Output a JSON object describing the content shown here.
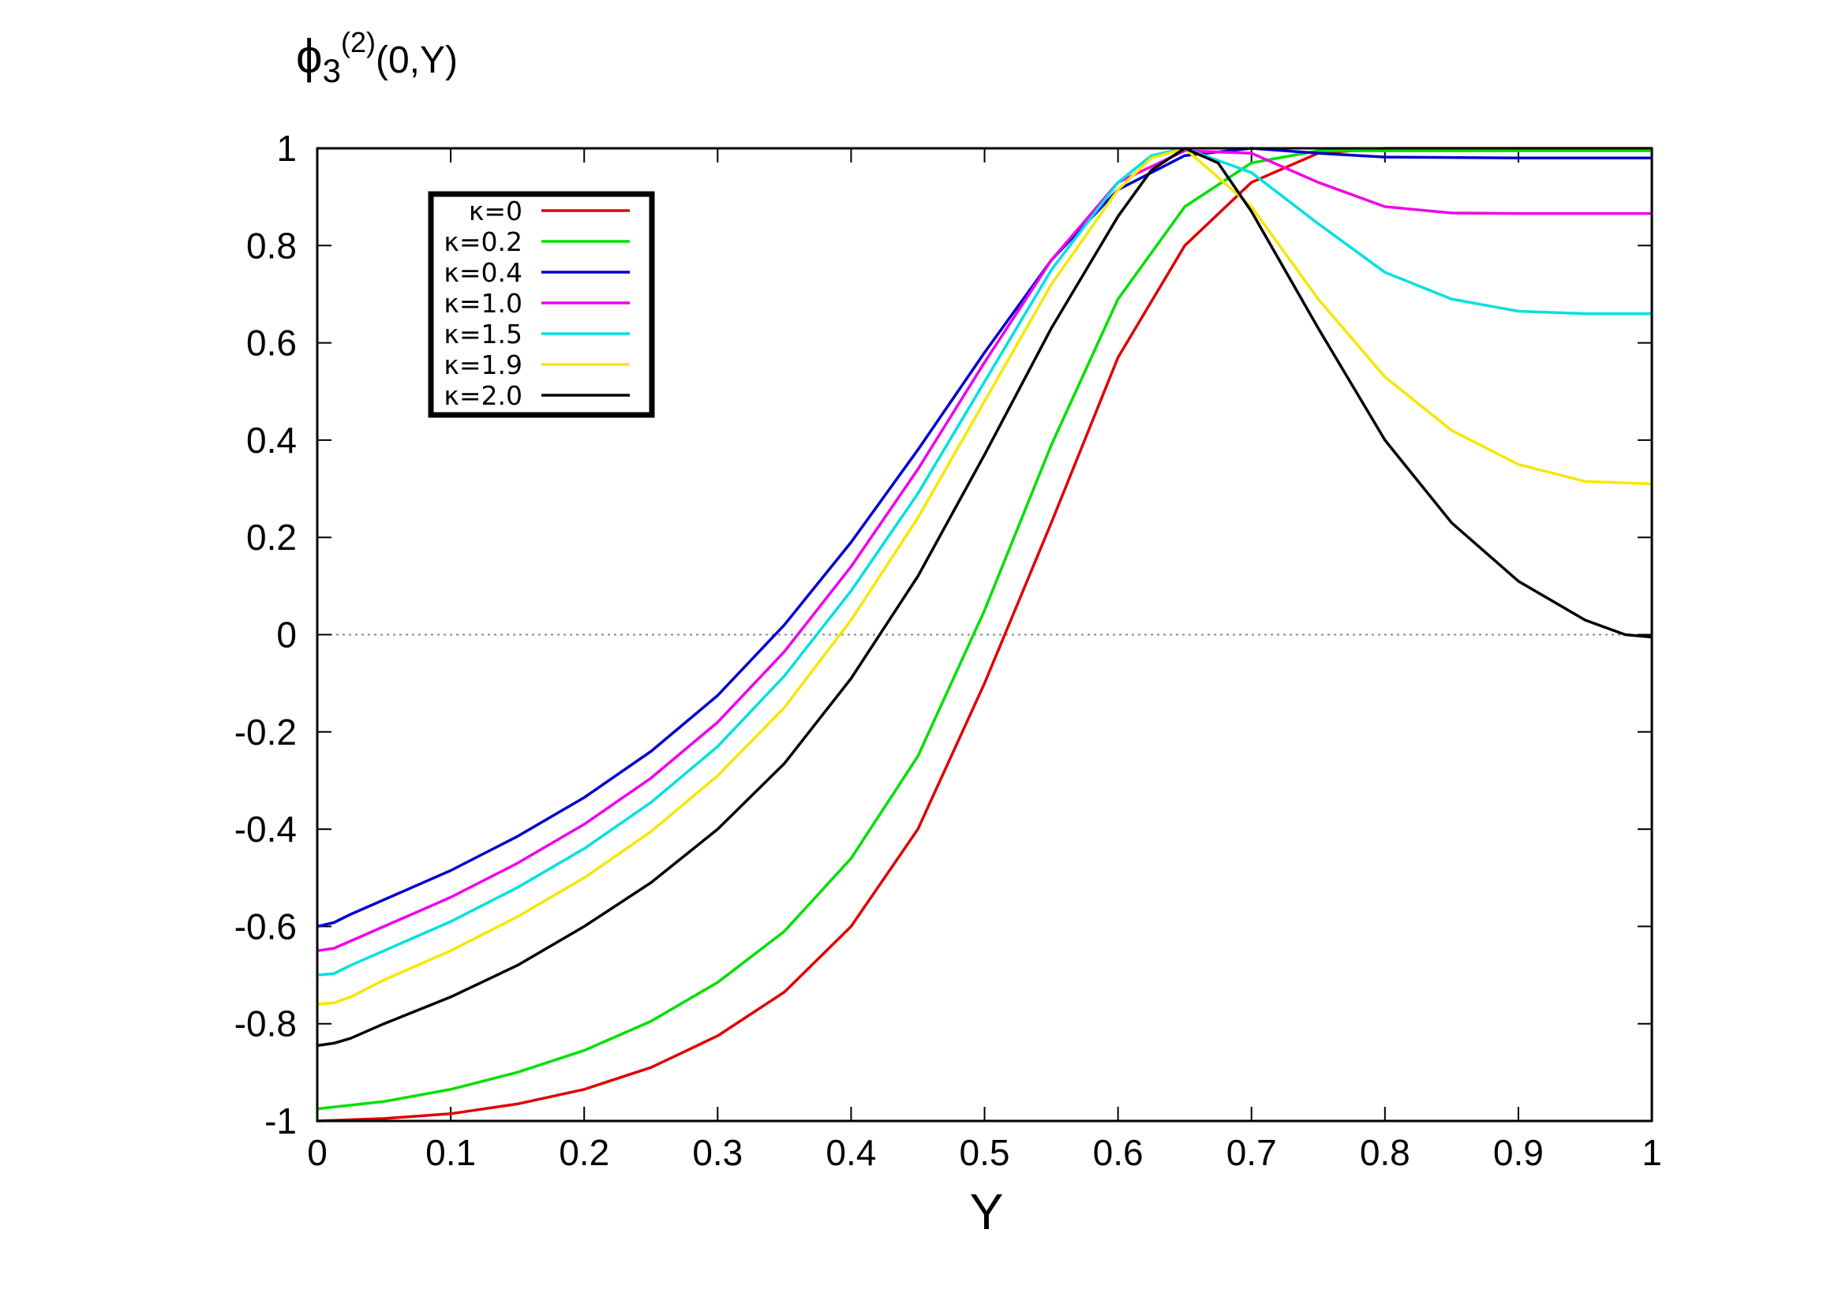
{
  "chart_data": {
    "type": "line",
    "title": "",
    "ylabel": {
      "symbol": "ϕ",
      "subscript": "3",
      "superscript": "(2)",
      "args": "(0,Y)"
    },
    "xlabel": "Y",
    "xlim": [
      0,
      1
    ],
    "ylim": [
      -1,
      1
    ],
    "x_ticks": [
      0,
      0.1,
      0.2,
      0.3,
      0.4,
      0.5,
      0.6,
      0.7,
      0.8,
      0.9,
      1
    ],
    "x_tick_labels": [
      "0",
      "0.1",
      "0.2",
      "0.3",
      "0.4",
      "0.5",
      "0.6",
      "0.7",
      "0.8",
      "0.9",
      "1"
    ],
    "y_ticks": [
      -1,
      -0.8,
      -0.6,
      -0.4,
      -0.2,
      0,
      0.2,
      0.4,
      0.6,
      0.8,
      1
    ],
    "y_tick_labels": [
      "-1",
      "-0.8",
      "-0.6",
      "-0.4",
      "-0.2",
      "0",
      "0.2",
      "0.4",
      "0.6",
      "0.8",
      "1"
    ],
    "zero_line": true,
    "legend_position": "top-left",
    "series": [
      {
        "name": "κ=0",
        "color": "#e00000",
        "points": [
          [
            0,
            -1.0
          ],
          [
            0.05,
            -0.995
          ],
          [
            0.1,
            -0.985
          ],
          [
            0.15,
            -0.965
          ],
          [
            0.2,
            -0.935
          ],
          [
            0.25,
            -0.89
          ],
          [
            0.3,
            -0.825
          ],
          [
            0.35,
            -0.735
          ],
          [
            0.4,
            -0.6
          ],
          [
            0.45,
            -0.4
          ],
          [
            0.5,
            -0.1
          ],
          [
            0.55,
            0.23
          ],
          [
            0.6,
            0.57
          ],
          [
            0.65,
            0.8
          ],
          [
            0.7,
            0.93
          ],
          [
            0.75,
            0.99
          ],
          [
            0.8,
            1.0
          ],
          [
            0.85,
            1.0
          ],
          [
            0.9,
            1.0
          ],
          [
            0.95,
            1.0
          ],
          [
            1.0,
            1.0
          ]
        ]
      },
      {
        "name": "κ=0.2",
        "color": "#00e000",
        "points": [
          [
            0,
            -0.975
          ],
          [
            0.05,
            -0.96
          ],
          [
            0.1,
            -0.935
          ],
          [
            0.15,
            -0.9
          ],
          [
            0.2,
            -0.855
          ],
          [
            0.25,
            -0.795
          ],
          [
            0.3,
            -0.715
          ],
          [
            0.35,
            -0.61
          ],
          [
            0.4,
            -0.46
          ],
          [
            0.45,
            -0.25
          ],
          [
            0.5,
            0.05
          ],
          [
            0.55,
            0.39
          ],
          [
            0.6,
            0.69
          ],
          [
            0.65,
            0.88
          ],
          [
            0.7,
            0.97
          ],
          [
            0.75,
            0.995
          ],
          [
            0.8,
            0.995
          ],
          [
            0.85,
            0.995
          ],
          [
            0.9,
            0.995
          ],
          [
            0.95,
            0.995
          ],
          [
            1.0,
            0.995
          ]
        ]
      },
      {
        "name": "κ=0.4",
        "color": "#0000d0",
        "points": [
          [
            0,
            -0.6
          ],
          [
            0.0125,
            -0.592
          ],
          [
            0.025,
            -0.575
          ],
          [
            0.05,
            -0.545
          ],
          [
            0.1,
            -0.485
          ],
          [
            0.15,
            -0.415
          ],
          [
            0.2,
            -0.335
          ],
          [
            0.25,
            -0.24
          ],
          [
            0.3,
            -0.125
          ],
          [
            0.35,
            0.02
          ],
          [
            0.4,
            0.19
          ],
          [
            0.45,
            0.38
          ],
          [
            0.5,
            0.58
          ],
          [
            0.55,
            0.77
          ],
          [
            0.6,
            0.915
          ],
          [
            0.65,
            0.985
          ],
          [
            0.7,
            1.0
          ],
          [
            0.75,
            0.99
          ],
          [
            0.8,
            0.982
          ],
          [
            0.9,
            0.98
          ],
          [
            1.0,
            0.98
          ]
        ]
      },
      {
        "name": "κ=1.0",
        "color": "#ee00ee",
        "points": [
          [
            0,
            -0.65
          ],
          [
            0.0125,
            -0.645
          ],
          [
            0.025,
            -0.63
          ],
          [
            0.05,
            -0.6
          ],
          [
            0.1,
            -0.54
          ],
          [
            0.15,
            -0.47
          ],
          [
            0.2,
            -0.39
          ],
          [
            0.25,
            -0.295
          ],
          [
            0.3,
            -0.18
          ],
          [
            0.35,
            -0.035
          ],
          [
            0.4,
            0.14
          ],
          [
            0.45,
            0.34
          ],
          [
            0.5,
            0.56
          ],
          [
            0.55,
            0.77
          ],
          [
            0.6,
            0.93
          ],
          [
            0.65,
            0.995
          ],
          [
            0.7,
            0.99
          ],
          [
            0.75,
            0.93
          ],
          [
            0.8,
            0.88
          ],
          [
            0.85,
            0.867
          ],
          [
            0.9,
            0.866
          ],
          [
            1.0,
            0.866
          ]
        ]
      },
      {
        "name": "κ=1.5",
        "color": "#00e0e0",
        "points": [
          [
            0,
            -0.7
          ],
          [
            0.0125,
            -0.697
          ],
          [
            0.025,
            -0.68
          ],
          [
            0.05,
            -0.65
          ],
          [
            0.1,
            -0.59
          ],
          [
            0.15,
            -0.52
          ],
          [
            0.2,
            -0.44
          ],
          [
            0.25,
            -0.345
          ],
          [
            0.3,
            -0.23
          ],
          [
            0.35,
            -0.085
          ],
          [
            0.4,
            0.09
          ],
          [
            0.45,
            0.29
          ],
          [
            0.5,
            0.52
          ],
          [
            0.55,
            0.75
          ],
          [
            0.6,
            0.93
          ],
          [
            0.625,
            0.985
          ],
          [
            0.65,
            1.0
          ],
          [
            0.7,
            0.95
          ],
          [
            0.75,
            0.845
          ],
          [
            0.8,
            0.745
          ],
          [
            0.85,
            0.69
          ],
          [
            0.9,
            0.665
          ],
          [
            0.95,
            0.66
          ],
          [
            1.0,
            0.66
          ]
        ]
      },
      {
        "name": "κ=1.9",
        "color": "#f5e800",
        "points": [
          [
            0,
            -0.76
          ],
          [
            0.0125,
            -0.757
          ],
          [
            0.025,
            -0.745
          ],
          [
            0.05,
            -0.71
          ],
          [
            0.1,
            -0.65
          ],
          [
            0.15,
            -0.58
          ],
          [
            0.2,
            -0.5
          ],
          [
            0.25,
            -0.405
          ],
          [
            0.3,
            -0.29
          ],
          [
            0.35,
            -0.15
          ],
          [
            0.4,
            0.03
          ],
          [
            0.45,
            0.24
          ],
          [
            0.5,
            0.48
          ],
          [
            0.55,
            0.72
          ],
          [
            0.6,
            0.915
          ],
          [
            0.625,
            0.98
          ],
          [
            0.65,
            1.0
          ],
          [
            0.7,
            0.88
          ],
          [
            0.75,
            0.69
          ],
          [
            0.8,
            0.53
          ],
          [
            0.85,
            0.42
          ],
          [
            0.9,
            0.35
          ],
          [
            0.95,
            0.315
          ],
          [
            1.0,
            0.31
          ]
        ]
      },
      {
        "name": "κ=2.0",
        "color": "#000000",
        "points": [
          [
            0,
            -0.845
          ],
          [
            0.0125,
            -0.84
          ],
          [
            0.025,
            -0.83
          ],
          [
            0.05,
            -0.8
          ],
          [
            0.1,
            -0.745
          ],
          [
            0.15,
            -0.68
          ],
          [
            0.2,
            -0.6
          ],
          [
            0.25,
            -0.51
          ],
          [
            0.3,
            -0.4
          ],
          [
            0.35,
            -0.265
          ],
          [
            0.4,
            -0.09
          ],
          [
            0.45,
            0.12
          ],
          [
            0.5,
            0.37
          ],
          [
            0.55,
            0.63
          ],
          [
            0.6,
            0.86
          ],
          [
            0.625,
            0.955
          ],
          [
            0.65,
            1.0
          ],
          [
            0.675,
            0.97
          ],
          [
            0.7,
            0.87
          ],
          [
            0.75,
            0.63
          ],
          [
            0.8,
            0.4
          ],
          [
            0.85,
            0.23
          ],
          [
            0.9,
            0.11
          ],
          [
            0.95,
            0.03
          ],
          [
            0.98,
            0.0
          ],
          [
            1.0,
            -0.005
          ]
        ]
      }
    ]
  }
}
